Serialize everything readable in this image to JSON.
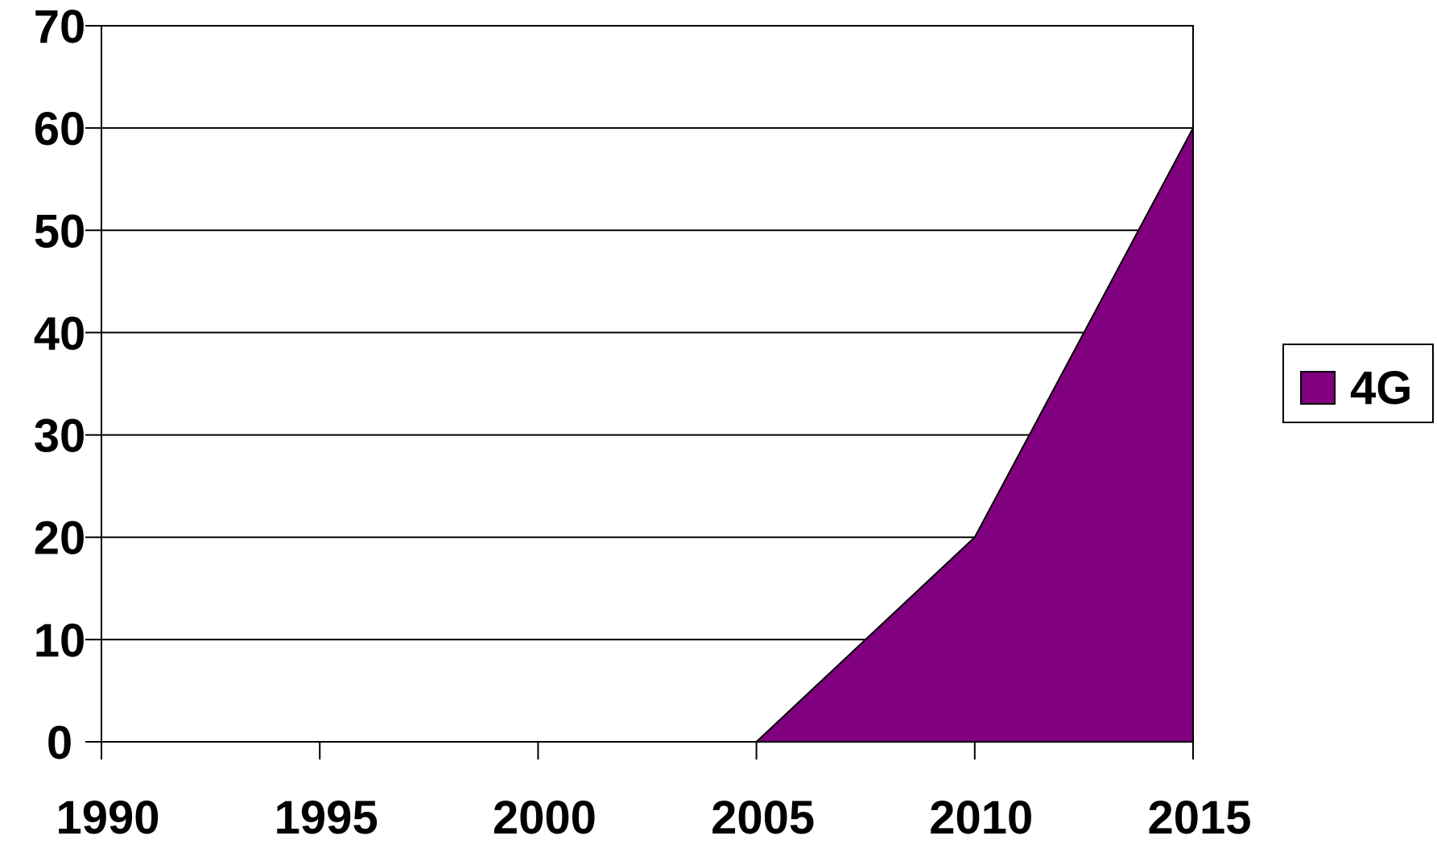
{
  "chart_data": {
    "type": "area",
    "x": [
      1990,
      1995,
      2000,
      2005,
      2010,
      2015
    ],
    "x_tick_labels": [
      "1990",
      "1995",
      "2000",
      "2005",
      "2010",
      "2015"
    ],
    "y_tick_labels": [
      "0",
      "10",
      "20",
      "30",
      "40",
      "50",
      "60",
      "70"
    ],
    "series": [
      {
        "name": "4G",
        "color": "#800080",
        "points": [
          [
            2005,
            0
          ],
          [
            2010,
            20
          ],
          [
            2015,
            60
          ]
        ]
      }
    ],
    "xlim": [
      1990,
      2015
    ],
    "ylim": [
      0,
      70
    ],
    "y_step": 10,
    "grid": true,
    "legend_position": "right"
  }
}
